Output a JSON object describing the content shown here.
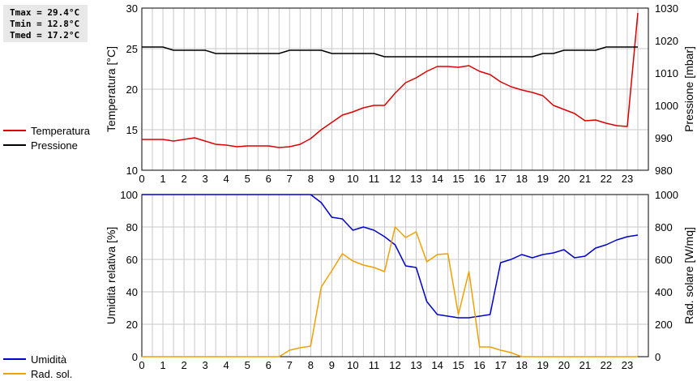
{
  "stats": {
    "tmax": "Tmax = 29.4°C",
    "tmin": "Tmin = 12.8°C",
    "tmed": "Tmed = 17.2°C"
  },
  "legend_top": [
    {
      "label": "Temperatura",
      "color": "#dd0000"
    },
    {
      "label": "Pressione",
      "color": "#000000"
    }
  ],
  "legend_bottom": [
    {
      "label": "Umidità",
      "color": "#0000cc"
    },
    {
      "label": "Rad. sol.",
      "color": "#f0a000"
    }
  ],
  "chart_data": [
    {
      "type": "line",
      "x_ticks": [
        0,
        1,
        2,
        3,
        4,
        5,
        6,
        7,
        8,
        9,
        10,
        11,
        12,
        13,
        14,
        15,
        16,
        17,
        18,
        19,
        20,
        21,
        22,
        23
      ],
      "xlim": [
        0,
        24
      ],
      "grid": true,
      "ylabel": "Temperatura [°C]",
      "ylim": [
        10,
        30
      ],
      "y_ticks": [
        10,
        15,
        20,
        25,
        30
      ],
      "ylabel_right": "Pressione [mbar]",
      "ylim_right": [
        980,
        1030
      ],
      "y_ticks_right": [
        980,
        990,
        1000,
        1010,
        1020,
        1030
      ],
      "series": [
        {
          "name": "Temperatura",
          "axis": "left",
          "color": "#dd0000",
          "x": [
            0,
            0.5,
            1,
            1.5,
            2,
            2.5,
            3,
            3.5,
            4,
            4.5,
            5,
            5.5,
            6,
            6.5,
            7,
            7.5,
            8,
            8.5,
            9,
            9.5,
            10,
            10.5,
            11,
            11.5,
            12,
            12.5,
            13,
            13.5,
            14,
            14.5,
            15,
            15.5,
            16,
            16.5,
            17,
            17.5,
            18,
            18.5,
            19,
            19.5,
            20,
            20.5,
            21,
            21.5,
            22,
            22.5,
            23,
            23.5
          ],
          "y": [
            13.8,
            13.8,
            13.8,
            13.6,
            13.8,
            14.0,
            13.6,
            13.2,
            13.1,
            12.9,
            13.0,
            13.0,
            13.0,
            12.8,
            12.9,
            13.2,
            13.9,
            15.0,
            15.9,
            16.8,
            17.2,
            17.7,
            18.0,
            18.0,
            19.5,
            20.8,
            21.4,
            22.2,
            22.8,
            22.8,
            22.7,
            22.9,
            22.2,
            21.8,
            20.9,
            20.3,
            19.9,
            19.6,
            19.2,
            18.0,
            17.5,
            17.0,
            16.1,
            16.2,
            15.8,
            15.5,
            15.4,
            29.4
          ]
        },
        {
          "name": "Pressione",
          "axis": "right",
          "color": "#000000",
          "x": [
            0,
            0.5,
            1,
            1.5,
            2,
            2.5,
            3,
            3.5,
            4,
            4.5,
            5,
            5.5,
            6,
            6.5,
            7,
            7.5,
            8,
            8.5,
            9,
            9.5,
            10,
            10.5,
            11,
            11.5,
            12,
            12.5,
            13,
            13.5,
            14,
            14.5,
            15,
            15.5,
            16,
            16.5,
            17,
            17.5,
            18,
            18.5,
            19,
            19.5,
            20,
            20.5,
            21,
            21.5,
            22,
            22.5,
            23,
            23.5
          ],
          "y": [
            1018,
            1018,
            1018,
            1017,
            1017,
            1017,
            1017,
            1016,
            1016,
            1016,
            1016,
            1016,
            1016,
            1016,
            1017,
            1017,
            1017,
            1017,
            1016,
            1016,
            1016,
            1016,
            1016,
            1015,
            1015,
            1015,
            1015,
            1015,
            1015,
            1015,
            1015,
            1015,
            1015,
            1015,
            1015,
            1015,
            1015,
            1015,
            1016,
            1016,
            1017,
            1017,
            1017,
            1017,
            1018,
            1018,
            1018,
            1018
          ]
        }
      ]
    },
    {
      "type": "line",
      "x_ticks": [
        0,
        1,
        2,
        3,
        4,
        5,
        6,
        7,
        8,
        9,
        10,
        11,
        12,
        13,
        14,
        15,
        16,
        17,
        18,
        19,
        20,
        21,
        22,
        23
      ],
      "xlim": [
        0,
        24
      ],
      "grid": true,
      "ylabel": "Umidità relativa [%]",
      "ylim": [
        0,
        100
      ],
      "y_ticks": [
        0,
        20,
        40,
        60,
        80,
        100
      ],
      "ylabel_right": "Rad. solare [W/mq]",
      "ylim_right": [
        0,
        1000
      ],
      "y_ticks_right": [
        0,
        200,
        400,
        600,
        800,
        1000
      ],
      "series": [
        {
          "name": "Umidità",
          "axis": "left",
          "color": "#0000cc",
          "x": [
            0,
            0.5,
            1,
            1.5,
            2,
            2.5,
            3,
            3.5,
            4,
            4.5,
            5,
            5.5,
            6,
            6.5,
            7,
            7.5,
            8,
            8.5,
            9,
            9.5,
            10,
            10.5,
            11,
            11.5,
            12,
            12.5,
            13,
            13.5,
            14,
            14.5,
            15,
            15.5,
            16,
            16.5,
            17,
            17.5,
            18,
            18.5,
            19,
            19.5,
            20,
            20.5,
            21,
            21.5,
            22,
            22.5,
            23,
            23.5
          ],
          "y": [
            100,
            100,
            100,
            100,
            100,
            100,
            100,
            100,
            100,
            100,
            100,
            100,
            100,
            100,
            100,
            100,
            100,
            95,
            86,
            85,
            78,
            80,
            78,
            74,
            69,
            56,
            55,
            34,
            26,
            25,
            24,
            24,
            25,
            26,
            58,
            60,
            63,
            61,
            63,
            64,
            66,
            61,
            62,
            67,
            69,
            72,
            74,
            75
          ]
        },
        {
          "name": "Rad. sol.",
          "axis": "right",
          "color": "#f0a000",
          "x": [
            0,
            0.5,
            1,
            1.5,
            2,
            2.5,
            3,
            3.5,
            4,
            4.5,
            5,
            5.5,
            6,
            6.5,
            7,
            7.5,
            8,
            8.5,
            9,
            9.5,
            10,
            10.5,
            11,
            11.5,
            12,
            12.5,
            13,
            13.5,
            14,
            14.5,
            15,
            15.5,
            16,
            16.5,
            17,
            17.5,
            18,
            18.5,
            19,
            19.5,
            20,
            20.5,
            21,
            21.5,
            22,
            22.5,
            23,
            23.5
          ],
          "y": [
            0,
            0,
            0,
            0,
            0,
            0,
            0,
            0,
            0,
            0,
            0,
            0,
            0,
            0,
            40,
            55,
            65,
            430,
            530,
            635,
            590,
            565,
            550,
            525,
            800,
            735,
            770,
            585,
            630,
            635,
            260,
            525,
            60,
            60,
            40,
            25,
            0,
            0,
            0,
            0,
            0,
            0,
            0,
            0,
            0,
            0,
            0,
            0
          ]
        }
      ]
    }
  ]
}
